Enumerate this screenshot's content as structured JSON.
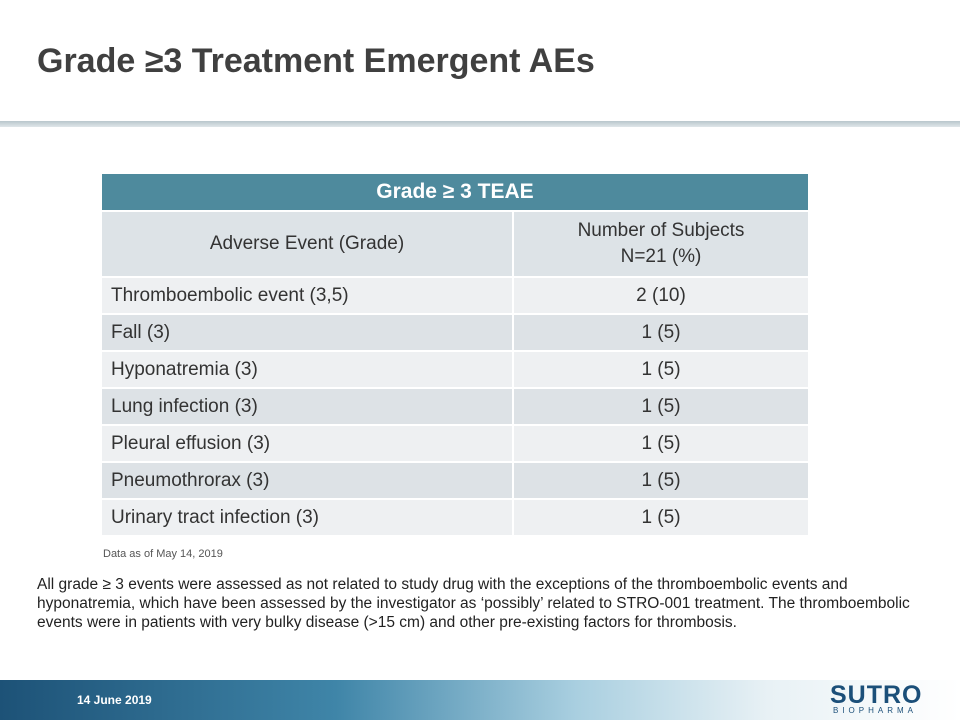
{
  "header": {
    "title": "Grade ≥3 Treatment Emergent AEs"
  },
  "table": {
    "caption": "Grade ≥ 3 TEAE",
    "columns": [
      "Adverse Event (Grade)",
      [
        "Number of Subjects",
        "N=21 (%)"
      ]
    ],
    "rows": [
      [
        "Thromboembolic event (3,5)",
        "2 (10)"
      ],
      [
        "Fall (3)",
        "1 (5)"
      ],
      [
        "Hyponatremia (3)",
        "1 (5)"
      ],
      [
        "Lung infection (3)",
        "1 (5)"
      ],
      [
        "Pleural effusion (3)",
        "1 (5)"
      ],
      [
        "Pneumothrorax (3)",
        "1 (5)"
      ],
      [
        "Urinary tract infection (3)",
        "1 (5)"
      ]
    ],
    "note": "Data as of May 14, 2019"
  },
  "body": {
    "paragraph": "All grade ≥ 3 events were assessed as not related to study drug with the exceptions of the thromboembolic events and hyponatremia, which have been assessed by the investigator as ‘possibly’ related to STRO-001 treatment. The thromboembolic events were in patients with very bulky disease (>15 cm) and other pre-existing factors for thrombosis."
  },
  "footer": {
    "date": "14 June 2019",
    "logo_name": "SUTRO",
    "logo_subtitle": "BIOPHARMA"
  }
}
